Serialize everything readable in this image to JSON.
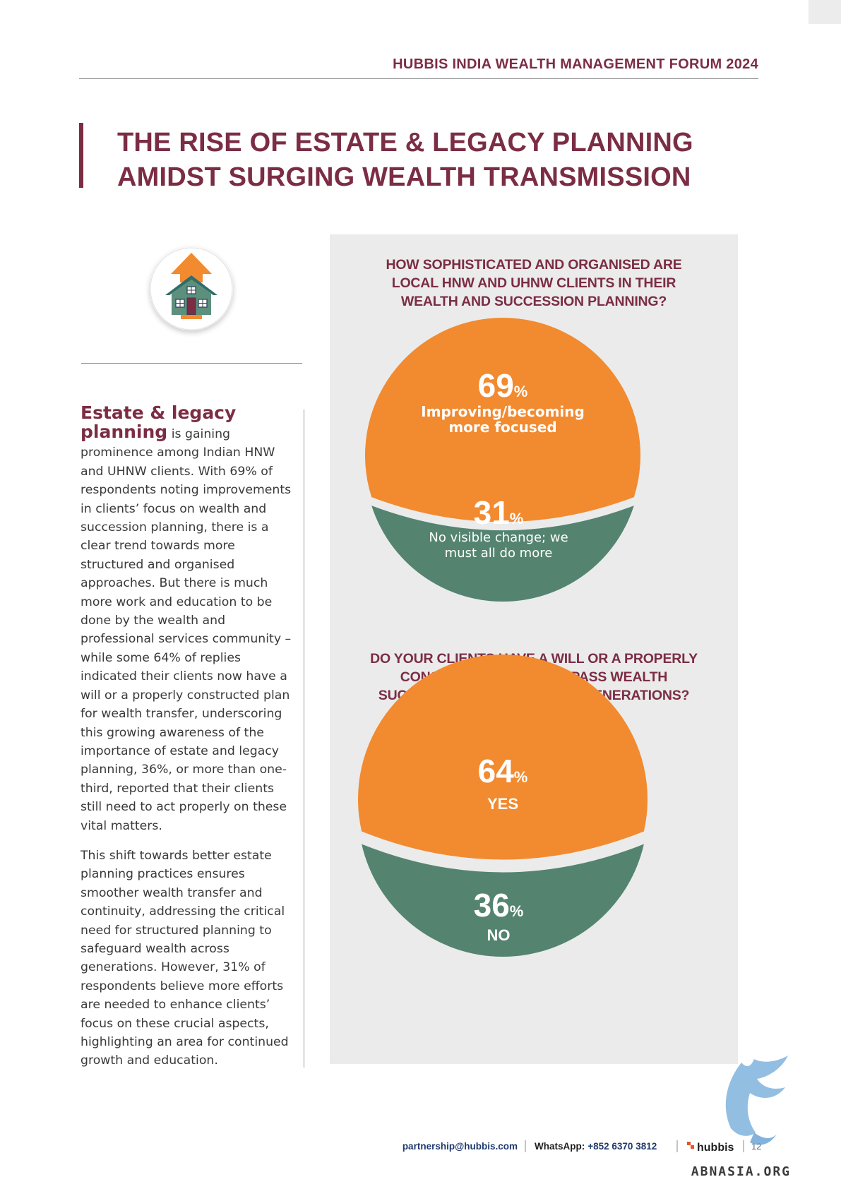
{
  "header": {
    "title": "HUBBIS INDIA WEALTH MANAGEMENT FORUM 2024"
  },
  "page_title": {
    "lines": [
      "THE RISE OF ESTATE & LEGACY PLANNING",
      "AMIDST SURGING WEALTH TRANSMISSION"
    ]
  },
  "icon": {
    "name": "house-upward-arrow-icon"
  },
  "body": {
    "lead_lines": [
      "Estate & legacy",
      "planning"
    ],
    "para1_rest": " is gaining prominence among Indian HNW and UHNW clients. With 69% of respondents noting improvements in clients’ focus on wealth and succession planning, there is a clear trend towards more structured and organised approaches. But there is much more work and education to be done by the wealth and professional services community – while some 64% of replies indicated their clients now have a will or a properly constructed plan for wealth transfer, underscoring this growing awareness of the importance of estate and legacy planning, 36%, or more than one-third, reported that their clients still need to act properly on these vital matters.",
    "para2": "This shift towards better estate planning practices ensures smoother wealth transfer and continuity, addressing the critical need for structured planning to safeguard wealth across generations. However, 31% of respondents believe more efforts are needed to enhance clients’ focus on these crucial aspects, highlighting an area for continued growth and education."
  },
  "chart_data": [
    {
      "type": "pie",
      "title_lines": [
        "HOW SOPHISTICATED AND ORGANISED ARE",
        "LOCAL HNW AND UHNW CLIENTS IN THEIR",
        "WEALTH AND SUCCESSION PLANNING?"
      ],
      "slices": [
        {
          "label_lines": [
            "Improving/becoming",
            "more focused"
          ],
          "value": 69,
          "value_text": "69",
          "unit": "%",
          "color": "#f28a30"
        },
        {
          "label_lines": [
            "No visible change; we",
            "must all do more"
          ],
          "value": 31,
          "value_text": "31",
          "unit": "%",
          "color": "#548470"
        }
      ]
    },
    {
      "type": "pie",
      "title_lines": [
        "DO YOUR CLIENTS HAVE A WILL OR A PROPERLY",
        "CONSTRUCTED PLAN TO PASS WEALTH",
        "SUCCESSFULLY TO THE NEXT GENERATIONS?"
      ],
      "slices": [
        {
          "label_lines": [
            "YES"
          ],
          "value": 64,
          "value_text": "64",
          "unit": "%",
          "color": "#f28a30"
        },
        {
          "label_lines": [
            "NO"
          ],
          "value": 36,
          "value_text": "36",
          "unit": "%",
          "color": "#548470"
        }
      ]
    }
  ],
  "colors": {
    "brand": "#7b2d44",
    "orange": "#f28a30",
    "green": "#548470",
    "panel": "#ebebeb",
    "footer_blue": "#1f3a6e"
  },
  "footer": {
    "email": "partnership@hubbis.com",
    "whatsapp_label": "WhatsApp:",
    "whatsapp_number": "+852 6370 3812",
    "logo_text": "hubbis",
    "page_number": "12"
  },
  "watermark": {
    "text": "ABNASIA.ORG"
  }
}
